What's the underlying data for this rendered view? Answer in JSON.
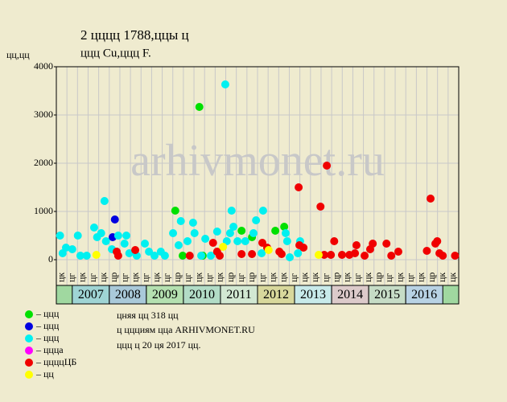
{
  "chart_data": {
    "type": "scatter",
    "title": "2 цццц 1788,ццы ц",
    "subtitle": "ццц Cu,ццц F.",
    "y_label": "цц,цц",
    "watermark": "arhivmonet.ru",
    "ylim": [
      0,
      4000
    ],
    "yticks": [
      0,
      1000,
      2000,
      3000,
      4000
    ],
    "xlim": [
      2006.57,
      2017.43
    ],
    "xticks": [
      2007,
      2008,
      2009,
      2010,
      2011,
      2012,
      2013,
      2014,
      2015,
      2016
    ],
    "band_colors": [
      "#9fd4d4",
      "#a9c9d9",
      "#b4e0b0",
      "#b2dcc6",
      "#d2e8d2",
      "#d8d89c",
      "#c8eaea",
      "#dccaca",
      "#c6dcc6",
      "#b8d2e4"
    ],
    "period_labels": [
      "цк",
      "цг",
      "цк",
      "цг",
      "цк",
      "цр",
      "цг",
      "цк",
      "цг",
      "цк",
      "цг",
      "цр",
      "цг",
      "цк",
      "цг",
      "цк",
      "цр",
      "цг",
      "цр",
      "цг",
      "цк",
      "цк",
      "цг",
      "цк",
      "цк",
      "цг",
      "цр",
      "цк",
      "цг",
      "цк",
      "цр",
      "цг",
      "цк",
      "цг",
      "цк",
      "цр",
      "цк",
      "цк"
    ],
    "grid": true,
    "series": [
      {
        "name": "– ццц",
        "color": "#00e000",
        "x": [
          2009.78,
          2010.43,
          2011.57,
          2012.48,
          2012.72,
          2011.85,
          2009.98,
          2010.52
        ],
        "values": [
          1017,
          3167,
          600,
          600,
          683,
          467,
          83,
          83
        ]
      },
      {
        "name": "– ццц",
        "color": "#0000e0",
        "x": [
          2008.15,
          2008.09
        ],
        "values": [
          833,
          467
        ]
      },
      {
        "name": "– ццц",
        "color": "#00f0f0",
        "x": [
          2006.67,
          2006.74,
          2006.83,
          2007.0,
          2007.15,
          2007.22,
          2007.39,
          2007.59,
          2007.67,
          2007.78,
          2007.87,
          2007.91,
          2008.07,
          2008.24,
          2008.41,
          2008.46,
          2008.54,
          2008.74,
          2008.96,
          2009.07,
          2009.22,
          2009.39,
          2009.5,
          2009.72,
          2009.87,
          2009.93,
          2010.11,
          2010.26,
          2010.3,
          2010.48,
          2010.59,
          2010.74,
          2010.91,
          2011.13,
          2011.17,
          2011.26,
          2011.3,
          2011.35,
          2011.46,
          2011.67,
          2011.89,
          2011.96,
          2012.11,
          2012.15,
          2012.76,
          2012.8,
          2012.87,
          2013.09,
          2013.15
        ],
        "values": [
          500,
          133,
          250,
          217,
          500,
          83,
          83,
          667,
          467,
          550,
          1217,
          383,
          217,
          500,
          333,
          500,
          133,
          83,
          333,
          167,
          83,
          167,
          83,
          550,
          300,
          800,
          383,
          767,
          550,
          83,
          433,
          83,
          583,
          3633,
          383,
          550,
          1017,
          683,
          383,
          383,
          550,
          817,
          133,
          1017,
          550,
          383,
          50,
          133,
          383
        ]
      },
      {
        "name": "– ццца",
        "color": "#ff00ff",
        "x": [],
        "values": []
      },
      {
        "name": "– ццццЦБ",
        "color": "#f00000",
        "x": [
          2008.2,
          2008.24,
          2008.7,
          2010.17,
          2010.8,
          2010.91,
          2010.98,
          2011.57,
          2011.85,
          2012.13,
          2012.26,
          2012.59,
          2012.65,
          2013.11,
          2013.13,
          2013.24,
          2013.7,
          2013.87,
          2013.8,
          2013.98,
          2014.07,
          2014.28,
          2014.48,
          2014.63,
          2014.67,
          2014.89,
          2015.04,
          2015.11,
          2015.48,
          2015.61,
          2015.8,
          2016.57,
          2016.67,
          2016.8,
          2016.85,
          2016.91,
          2017.0,
          2017.33
        ],
        "values": [
          167,
          83,
          200,
          83,
          350,
          167,
          83,
          117,
          117,
          350,
          250,
          167,
          117,
          1500,
          300,
          250,
          1100,
          1950,
          100,
          100,
          383,
          100,
          100,
          133,
          300,
          83,
          217,
          333,
          333,
          83,
          167,
          183,
          1267,
          333,
          383,
          133,
          83,
          83
        ]
      },
      {
        "name": "– цц",
        "color": "#ffff00",
        "x": [
          2007.65,
          2011.07,
          2012.3,
          2013.65
        ],
        "values": [
          100,
          267,
          200,
          100
        ]
      }
    ],
    "footer": [
      "цняя цц 318 цц",
      "ц ццциям цца ARHIVMONET.RU",
      "ццц ц 20 ця 2017 цц."
    ]
  }
}
